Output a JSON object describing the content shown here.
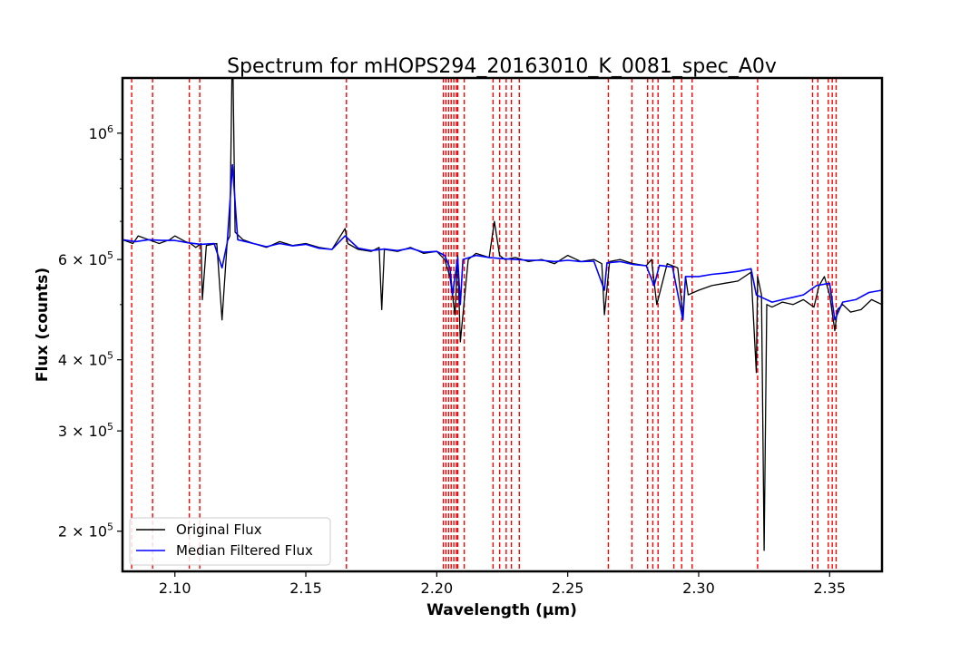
{
  "chart_data": {
    "type": "line",
    "title": "Spectrum for mHOPS294_20163010_K_0081_spec_A0v",
    "xlabel": "Wavelength (μm)",
    "ylabel": "Flux (counts)",
    "xlim": [
      2.08,
      2.37
    ],
    "ylim": [
      170000,
      1250000
    ],
    "yscale": "log",
    "grid": false,
    "legend_position": "lower-left",
    "x_ticks": [
      {
        "value": 2.1,
        "label": "2.10"
      },
      {
        "value": 2.15,
        "label": "2.15"
      },
      {
        "value": 2.2,
        "label": "2.20"
      },
      {
        "value": 2.25,
        "label": "2.25"
      },
      {
        "value": 2.3,
        "label": "2.30"
      },
      {
        "value": 2.35,
        "label": "2.35"
      }
    ],
    "y_ticks": [
      {
        "value": 200000,
        "mant": "2 × 10",
        "exp": "5"
      },
      {
        "value": 300000,
        "mant": "3 × 10",
        "exp": "5"
      },
      {
        "value": 400000,
        "mant": "4 × 10",
        "exp": "5"
      },
      {
        "value": 600000,
        "mant": "6 × 10",
        "exp": "5"
      },
      {
        "value": 1000000,
        "mant": "10",
        "exp": "6"
      }
    ],
    "series": [
      {
        "name": "Original Flux",
        "color": "#000000",
        "x": [
          2.08,
          2.084,
          2.086,
          2.09,
          2.094,
          2.098,
          2.1,
          2.104,
          2.106,
          2.108,
          2.11,
          2.1105,
          2.112,
          2.116,
          2.118,
          2.12,
          2.121,
          2.122,
          2.123,
          2.126,
          2.13,
          2.135,
          2.14,
          2.145,
          2.15,
          2.155,
          2.16,
          2.165,
          2.166,
          2.17,
          2.175,
          2.178,
          2.179,
          2.18,
          2.185,
          2.19,
          2.195,
          2.2,
          2.203,
          2.205,
          2.207,
          2.208,
          2.209,
          2.212,
          2.215,
          2.22,
          2.222,
          2.224,
          2.226,
          2.23,
          2.235,
          2.24,
          2.245,
          2.25,
          2.255,
          2.26,
          2.263,
          2.264,
          2.266,
          2.27,
          2.275,
          2.28,
          2.282,
          2.284,
          2.288,
          2.292,
          2.294,
          2.295,
          2.296,
          2.3,
          2.305,
          2.31,
          2.315,
          2.32,
          2.322,
          2.3225,
          2.324,
          2.325,
          2.326,
          2.328,
          2.332,
          2.336,
          2.34,
          2.344,
          2.346,
          2.348,
          2.35,
          2.352,
          2.353,
          2.355,
          2.358,
          2.362,
          2.366,
          2.37
        ],
        "y": [
          650000,
          640000,
          660000,
          650000,
          640000,
          650000,
          660000,
          645000,
          640000,
          630000,
          640000,
          510000,
          635000,
          640000,
          470000,
          645000,
          660000,
          1500000,
          670000,
          650000,
          640000,
          630000,
          645000,
          635000,
          640000,
          630000,
          625000,
          680000,
          640000,
          625000,
          620000,
          630000,
          490000,
          625000,
          620000,
          630000,
          615000,
          620000,
          600000,
          560000,
          480000,
          610000,
          430000,
          600000,
          615000,
          605000,
          700000,
          610000,
          600000,
          605000,
          595000,
          600000,
          590000,
          610000,
          595000,
          600000,
          590000,
          480000,
          595000,
          600000,
          590000,
          585000,
          600000,
          500000,
          590000,
          580000,
          480000,
          560000,
          520000,
          530000,
          540000,
          545000,
          550000,
          570000,
          380000,
          560000,
          520000,
          185000,
          500000,
          495000,
          505000,
          500000,
          510000,
          495000,
          540000,
          560000,
          520000,
          450000,
          490000,
          500000,
          485000,
          490000,
          510000,
          500000
        ]
      },
      {
        "name": "Median Filtered Flux",
        "color": "#0000ff",
        "x": [
          2.08,
          2.085,
          2.09,
          2.095,
          2.1,
          2.105,
          2.11,
          2.115,
          2.118,
          2.12,
          2.122,
          2.124,
          2.13,
          2.135,
          2.14,
          2.145,
          2.15,
          2.155,
          2.16,
          2.165,
          2.17,
          2.175,
          2.18,
          2.185,
          2.19,
          2.195,
          2.2,
          2.203,
          2.205,
          2.206,
          2.208,
          2.209,
          2.21,
          2.215,
          2.22,
          2.225,
          2.23,
          2.235,
          2.24,
          2.245,
          2.25,
          2.255,
          2.26,
          2.264,
          2.265,
          2.27,
          2.275,
          2.28,
          2.283,
          2.285,
          2.29,
          2.294,
          2.295,
          2.3,
          2.305,
          2.31,
          2.315,
          2.32,
          2.322,
          2.324,
          2.328,
          2.332,
          2.336,
          2.34,
          2.345,
          2.35,
          2.352,
          2.355,
          2.36,
          2.365,
          2.37
        ],
        "y": [
          650000,
          645000,
          650000,
          648000,
          648000,
          642000,
          638000,
          640000,
          580000,
          642000,
          880000,
          650000,
          640000,
          632000,
          640000,
          634000,
          638000,
          628000,
          625000,
          660000,
          628000,
          622000,
          626000,
          622000,
          628000,
          618000,
          620000,
          610000,
          580000,
          520000,
          605000,
          500000,
          600000,
          610000,
          605000,
          602000,
          600000,
          598000,
          598000,
          595000,
          598000,
          595000,
          596000,
          530000,
          592000,
          595000,
          588000,
          585000,
          540000,
          586000,
          582000,
          470000,
          560000,
          560000,
          565000,
          568000,
          572000,
          578000,
          520000,
          515000,
          505000,
          510000,
          515000,
          520000,
          540000,
          545000,
          470000,
          505000,
          510000,
          525000,
          530000
        ]
      }
    ],
    "vlines": {
      "color": "#ff0000",
      "style": "dashed",
      "x": [
        2.0835,
        2.0915,
        2.1055,
        2.1095,
        2.1655,
        2.2025,
        2.2035,
        2.2045,
        2.2055,
        2.2065,
        2.2075,
        2.208,
        2.2105,
        2.2215,
        2.224,
        2.2265,
        2.2285,
        2.2315,
        2.2655,
        2.2745,
        2.2805,
        2.2825,
        2.2845,
        2.2905,
        2.2935,
        2.2975,
        2.3225,
        2.3435,
        2.3455,
        2.3495,
        2.351,
        2.3525
      ]
    }
  }
}
